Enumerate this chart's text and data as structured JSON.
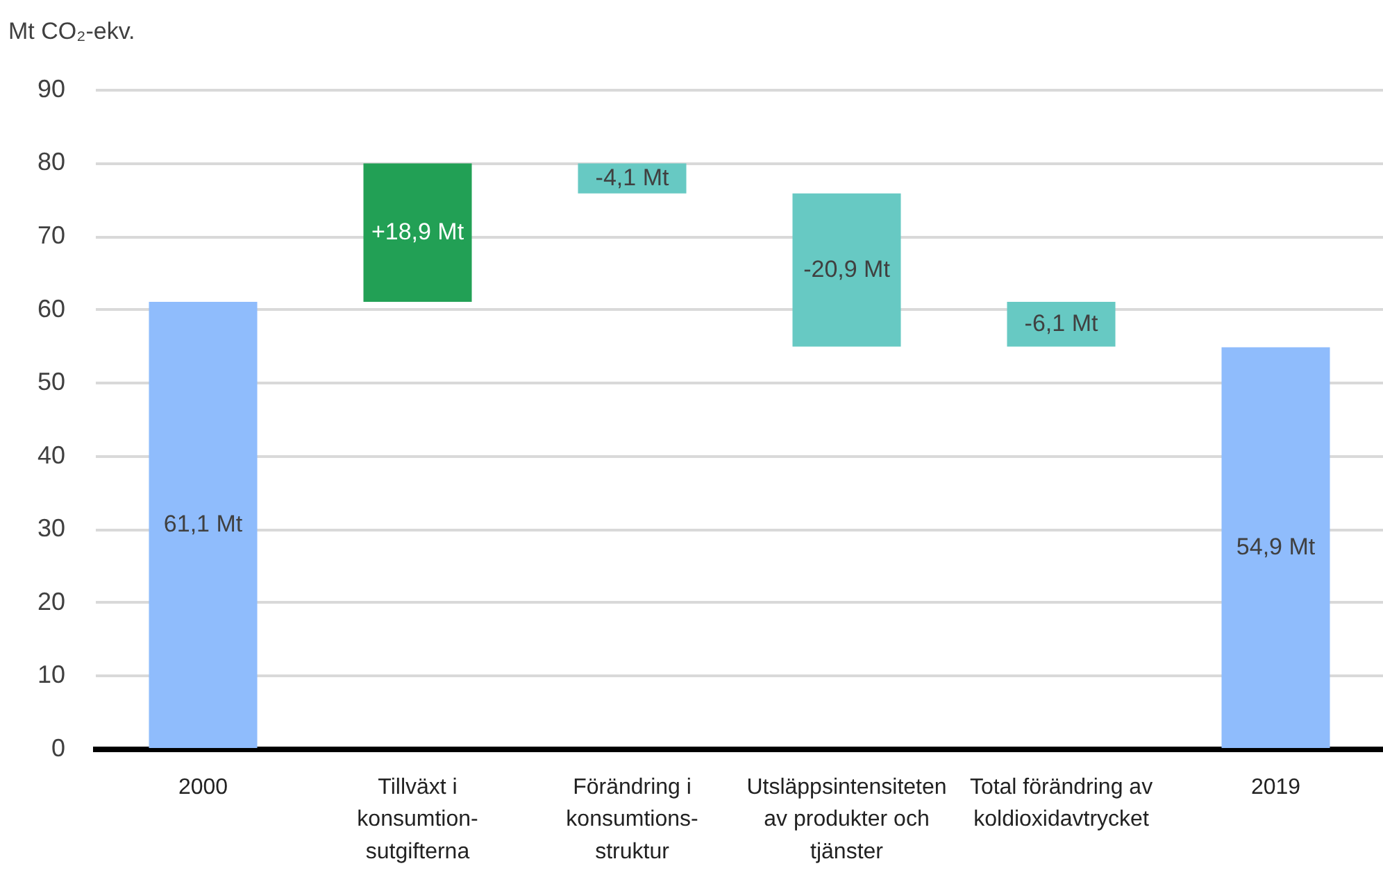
{
  "chart_data": {
    "type": "bar",
    "ylabel": "Mt CO₂-ekv.",
    "categories": [
      "2000",
      "Tillväxt i\nkonsumtion-\nsutgifterna",
      "Förändring i\nkonsumtions-\nstruktur",
      "Utsläppsintensiteten\nav produkter och\ntjänster",
      "Total förändring av\nkoldioxidavtrycket",
      "2019"
    ],
    "values": [
      61.1,
      18.9,
      -4.1,
      -20.9,
      -6.1,
      54.9
    ],
    "base": [
      0,
      61.1,
      80.0,
      75.9,
      61.1,
      0
    ],
    "colors": [
      "#8fbcfc",
      "#22a055",
      "#67c9c3",
      "#67c9c3",
      "#67c9c3",
      "#8fbcfc"
    ],
    "value_labels": [
      "61,1 Mt",
      "+18,9 Mt",
      "-4,1 Mt",
      "-20,9 Mt",
      "-6,1 Mt",
      "54,9 Mt"
    ],
    "ylim": [
      0,
      90
    ],
    "yticks": [
      0,
      10,
      20,
      30,
      40,
      50,
      60,
      70,
      80,
      90
    ],
    "grid": "y"
  }
}
